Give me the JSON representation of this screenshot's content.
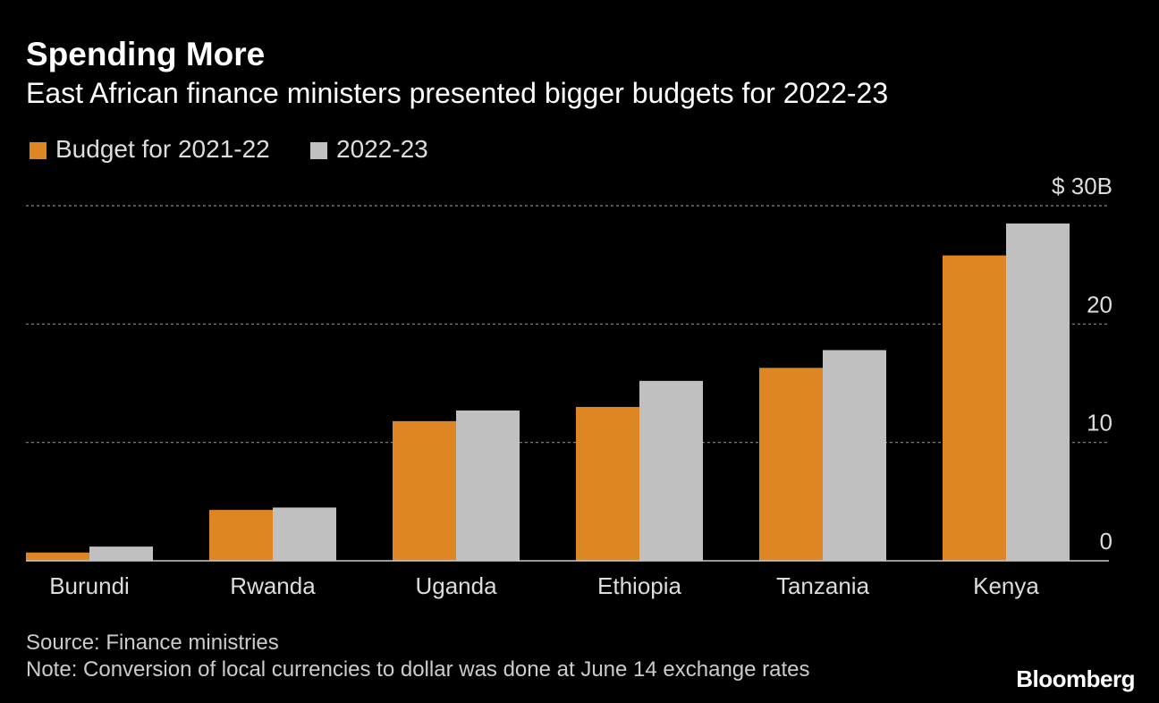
{
  "header": {
    "title": "Spending More",
    "subtitle": "East African finance ministers presented bigger budgets for 2022-23"
  },
  "legend": [
    {
      "label": "Budget for 2021-22",
      "color": "#dd8623"
    },
    {
      "label": "2022-23",
      "color": "#c0c0c0"
    }
  ],
  "chart_data": {
    "type": "bar",
    "categories": [
      "Burundi",
      "Rwanda",
      "Uganda",
      "Ethiopia",
      "Tanzania",
      "Kenya"
    ],
    "series": [
      {
        "name": "Budget for 2021-22",
        "color": "#dd8623",
        "values": [
          0.7,
          4.3,
          11.8,
          13.0,
          16.3,
          25.8
        ]
      },
      {
        "name": "2022-23",
        "color": "#c0c0c0",
        "values": [
          1.2,
          4.5,
          12.7,
          15.2,
          17.8,
          28.5
        ]
      }
    ],
    "ylim": [
      0,
      30
    ],
    "yticks": [
      {
        "value": 30,
        "label": "$ 30B"
      },
      {
        "value": 20,
        "label": "20"
      },
      {
        "value": 10,
        "label": "10"
      },
      {
        "value": 0,
        "label": "0"
      }
    ],
    "grid": true,
    "legend_position": "top-left",
    "y_axis_side": "right",
    "xlabel": "",
    "ylabel": ""
  },
  "footer": {
    "source": "Source: Finance ministries",
    "note": "Note: Conversion of local currencies to dollar was done at June 14 exchange rates",
    "brand": "Bloomberg"
  }
}
